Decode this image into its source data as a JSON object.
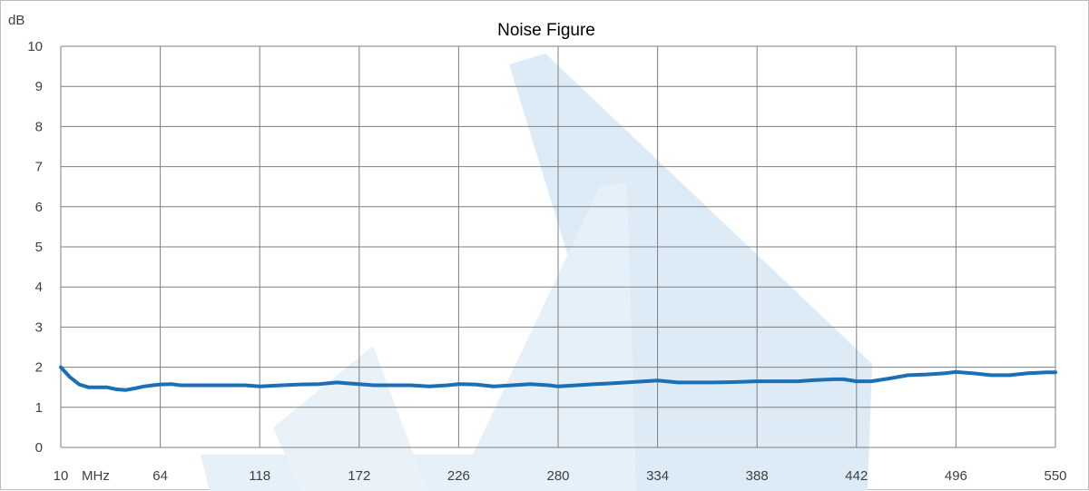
{
  "chart_data": {
    "type": "line",
    "title": "Noise Figure",
    "ylabel": "dB",
    "x_unit_label": "MHz",
    "xlim": [
      10,
      550
    ],
    "ylim": [
      0,
      10
    ],
    "x_ticks": [
      "10",
      "64",
      "118",
      "172",
      "226",
      "280",
      "334",
      "388",
      "442",
      "496",
      "550"
    ],
    "y_ticks": [
      "0",
      "1",
      "2",
      "3",
      "4",
      "5",
      "6",
      "7",
      "8",
      "9",
      "10"
    ],
    "grid": true,
    "line_color": "#1a6fb5",
    "watermark_color": "#dcebf6",
    "series": [
      {
        "x": [
          10,
          15,
          20,
          25,
          30,
          35,
          40,
          45,
          50,
          55,
          60,
          64,
          70,
          75,
          80,
          90,
          100,
          110,
          118,
          130,
          140,
          150,
          160,
          165,
          172,
          180,
          190,
          200,
          210,
          220,
          226,
          235,
          245,
          255,
          265,
          275,
          280,
          290,
          300,
          310,
          320,
          334,
          345,
          355,
          365,
          375,
          388,
          400,
          410,
          420,
          430,
          435,
          442,
          450,
          460,
          470,
          480,
          490,
          496,
          505,
          515,
          525,
          535,
          545,
          550
        ],
        "y": [
          2.0,
          1.75,
          1.57,
          1.5,
          1.5,
          1.5,
          1.45,
          1.43,
          1.47,
          1.52,
          1.55,
          1.57,
          1.58,
          1.55,
          1.55,
          1.55,
          1.55,
          1.55,
          1.52,
          1.55,
          1.57,
          1.58,
          1.62,
          1.6,
          1.58,
          1.55,
          1.55,
          1.55,
          1.52,
          1.55,
          1.58,
          1.57,
          1.52,
          1.55,
          1.58,
          1.55,
          1.52,
          1.55,
          1.58,
          1.6,
          1.63,
          1.67,
          1.62,
          1.62,
          1.62,
          1.63,
          1.65,
          1.65,
          1.65,
          1.68,
          1.7,
          1.7,
          1.65,
          1.65,
          1.72,
          1.8,
          1.82,
          1.85,
          1.88,
          1.85,
          1.8,
          1.8,
          1.85,
          1.87,
          1.87
        ]
      }
    ]
  }
}
